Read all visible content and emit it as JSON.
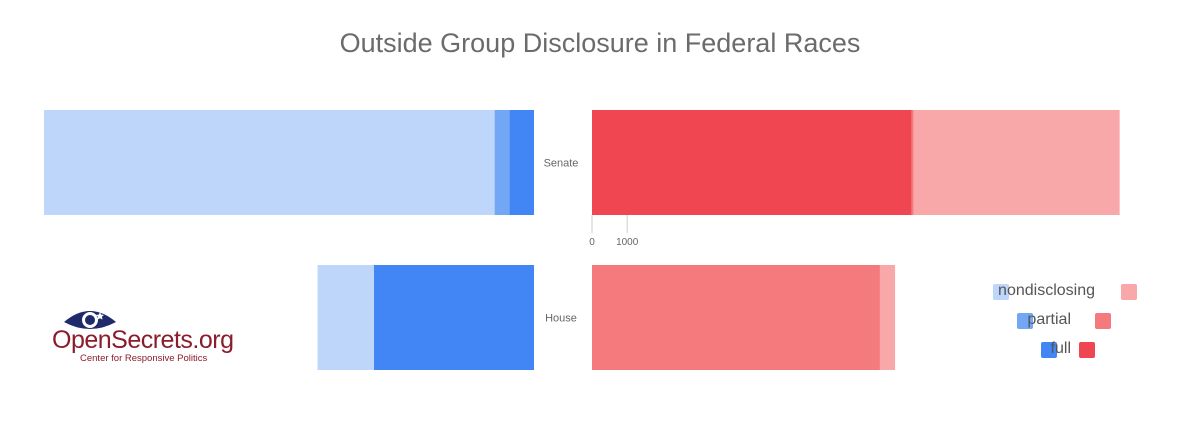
{
  "chart_data": {
    "type": "bar",
    "orientation": "horizontal",
    "title": "Outside Group Disclosure in Federal Races",
    "categories": [
      "Senate",
      "House"
    ],
    "x_ticks": [
      "0",
      "1000"
    ],
    "legend": [
      "nondisclosing",
      "partial",
      "full"
    ],
    "legend_placement": "bottom-right",
    "democratic": {
      "stacked_order": [
        "nondisclosing",
        "partial",
        "full"
      ],
      "series": [
        {
          "name": "nondisclosing",
          "values": [
            12800,
            1600
          ],
          "color": "#bfd6fb"
        },
        {
          "name": "partial",
          "values": [
            420,
            0
          ],
          "color": "#72a7f5"
        },
        {
          "name": "full",
          "values": [
            700,
            4550
          ],
          "color": "#4285f4"
        }
      ]
    },
    "republican": {
      "stacked_order": [
        "full",
        "partial",
        "nondisclosing"
      ],
      "series": [
        {
          "name": "full",
          "values": [
            9080,
            0
          ],
          "color": "#ef4651"
        },
        {
          "name": "partial",
          "values": [
            60,
            8180
          ],
          "color": "#f47a7e"
        },
        {
          "name": "nondisclosing",
          "values": [
            5850,
            430
          ],
          "color": "#f9a8aa"
        }
      ]
    }
  },
  "logo": {
    "name": "OpenSecrets.org",
    "tagline": "Center for Responsive Politics"
  },
  "colors": {
    "title": "#6b6b6b",
    "logo": "#8a1c2b"
  }
}
